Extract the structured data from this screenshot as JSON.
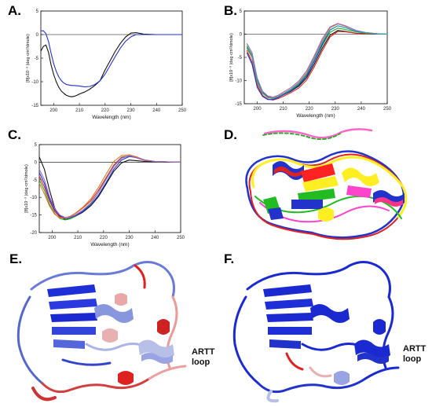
{
  "panels": {
    "a": {
      "label": "A."
    },
    "b": {
      "label": "B."
    },
    "c": {
      "label": "C."
    },
    "d": {
      "label": "D."
    },
    "e": {
      "label": "E.",
      "annotation_line1": "ARTT",
      "annotation_line2": "loop"
    },
    "f": {
      "label": "F.",
      "annotation_line1": "ARTT",
      "annotation_line2": "loop"
    }
  },
  "chart_data": [
    {
      "type": "line",
      "panel": "A.",
      "xlabel": "Wavelength (nm)",
      "ylabel": "[θ]x10⁻³ (deg·cm²/dmole)",
      "xlim": [
        195,
        250
      ],
      "ylim": [
        -15,
        5
      ],
      "xticks": [
        200,
        210,
        220,
        230,
        240,
        250
      ],
      "yticks": [
        -15,
        -10,
        -5,
        0,
        5
      ],
      "series": [
        {
          "color": "#111111",
          "x": [
            195,
            196,
            197,
            198,
            199,
            200,
            201,
            202,
            203,
            204,
            205,
            206,
            207,
            208,
            209,
            210,
            212,
            214,
            216,
            218,
            220,
            222,
            224,
            226,
            228,
            230,
            232,
            235,
            240,
            245,
            250
          ],
          "y": [
            -3.5,
            -2.5,
            -2.2,
            -3.8,
            -6.5,
            -8.5,
            -10,
            -11.2,
            -12.0,
            -12.5,
            -12.9,
            -13.1,
            -13.2,
            -13.1,
            -12.9,
            -12.6,
            -12.2,
            -11.6,
            -10.8,
            -9.8,
            -7.5,
            -5.5,
            -3.5,
            -1.8,
            -0.5,
            0.3,
            0.4,
            0.1,
            0.0,
            0.0,
            0.0
          ]
        },
        {
          "color": "#2233cc",
          "x": [
            195,
            196,
            197,
            198,
            199,
            200,
            201,
            202,
            203,
            204,
            205,
            206,
            207,
            208,
            210,
            212,
            214,
            216,
            218,
            220,
            222,
            224,
            226,
            228,
            230,
            232,
            235,
            240,
            245,
            250
          ],
          "y": [
            0.8,
            0.8,
            0.2,
            -1.5,
            -4.0,
            -6.2,
            -7.8,
            -9.0,
            -9.8,
            -10.3,
            -10.6,
            -10.7,
            -10.8,
            -10.8,
            -10.9,
            -11.1,
            -11.0,
            -10.6,
            -9.8,
            -8.4,
            -6.5,
            -4.6,
            -2.8,
            -1.4,
            -0.5,
            0.0,
            0.0,
            0.0,
            0.0,
            0.0
          ]
        }
      ]
    },
    {
      "type": "line",
      "panel": "B.",
      "xlabel": "Wavelength (nm)",
      "ylabel": "[θ]x10⁻³ (deg·cm²/dmole)",
      "xlim": [
        195,
        250
      ],
      "ylim": [
        -15,
        5
      ],
      "xticks": [
        200,
        210,
        220,
        230,
        240,
        250
      ],
      "yticks": [
        -15,
        -10,
        -5,
        0,
        5
      ],
      "series": [
        {
          "color": "#111111",
          "x": [
            196,
            198,
            200,
            202,
            204,
            206,
            208,
            210,
            213,
            216,
            219,
            222,
            225,
            228,
            231,
            234,
            238,
            242,
            246,
            250
          ],
          "y": [
            -3,
            -5,
            -10,
            -12.5,
            -13.5,
            -13.8,
            -13.6,
            -13.1,
            -12.3,
            -11.2,
            -9.4,
            -6.4,
            -3.0,
            -0.2,
            0.8,
            0.6,
            0.2,
            0.1,
            0.0,
            0.0
          ]
        },
        {
          "color": "#dd2222",
          "x": [
            196,
            198,
            200,
            202,
            204,
            206,
            208,
            210,
            213,
            216,
            219,
            222,
            225,
            228,
            231,
            234,
            238,
            242,
            246,
            250
          ],
          "y": [
            -3.5,
            -6,
            -11,
            -13.2,
            -14.0,
            -14.2,
            -13.9,
            -13.4,
            -12.6,
            -11.6,
            -9.9,
            -7.0,
            -3.6,
            -0.6,
            0.6,
            0.5,
            0.2,
            0.1,
            0.0,
            0.0
          ]
        },
        {
          "color": "#22aa22",
          "x": [
            196,
            198,
            200,
            202,
            204,
            206,
            208,
            210,
            213,
            216,
            219,
            222,
            225,
            228,
            231,
            234,
            238,
            242,
            246,
            250
          ],
          "y": [
            -2.5,
            -4.5,
            -9.8,
            -12.6,
            -13.6,
            -13.9,
            -13.5,
            -12.9,
            -12.0,
            -10.8,
            -8.9,
            -5.8,
            -2.4,
            0.4,
            1.3,
            1.0,
            0.5,
            0.2,
            0.1,
            0.0
          ]
        },
        {
          "color": "#2233cc",
          "x": [
            196,
            198,
            200,
            202,
            204,
            206,
            208,
            210,
            213,
            216,
            219,
            222,
            225,
            228,
            231,
            234,
            238,
            242,
            246,
            250
          ],
          "y": [
            -4,
            -6.5,
            -11.5,
            -13.4,
            -14.1,
            -14.1,
            -13.7,
            -13.1,
            -12.2,
            -11.0,
            -9.0,
            -5.8,
            -2.2,
            0.9,
            1.8,
            1.4,
            0.6,
            0.3,
            0.1,
            0.0
          ]
        },
        {
          "color": "#e07a2a",
          "x": [
            196,
            198,
            200,
            202,
            204,
            206,
            208,
            210,
            213,
            216,
            219,
            222,
            225,
            228,
            231,
            234,
            238,
            242,
            246,
            250
          ],
          "y": [
            -3,
            -5,
            -10.5,
            -12.8,
            -13.6,
            -13.8,
            -13.4,
            -12.8,
            -11.8,
            -10.4,
            -8.3,
            -5.0,
            -1.4,
            1.4,
            2.2,
            1.7,
            0.8,
            0.3,
            0.1,
            0.0
          ]
        },
        {
          "color": "#9966cc",
          "x": [
            196,
            198,
            200,
            202,
            204,
            206,
            208,
            210,
            213,
            216,
            219,
            222,
            225,
            228,
            231,
            234,
            238,
            242,
            246,
            250
          ],
          "y": [
            -2,
            -4,
            -9.5,
            -12.3,
            -13.3,
            -13.6,
            -13.2,
            -12.5,
            -11.5,
            -10.1,
            -7.9,
            -4.6,
            -1.0,
            1.6,
            2.3,
            1.8,
            0.8,
            0.3,
            0.1,
            0.0
          ]
        },
        {
          "color": "#22aaaa",
          "x": [
            196,
            198,
            200,
            202,
            204,
            206,
            208,
            210,
            213,
            216,
            219,
            222,
            225,
            228,
            231,
            234,
            238,
            242,
            246,
            250
          ],
          "y": [
            -2.8,
            -4.8,
            -10.2,
            -12.7,
            -13.7,
            -13.9,
            -13.5,
            -12.9,
            -11.9,
            -10.6,
            -8.6,
            -5.3,
            -1.8,
            1.0,
            1.8,
            1.4,
            0.6,
            0.3,
            0.1,
            0.0
          ]
        }
      ]
    },
    {
      "type": "line",
      "panel": "C.",
      "xlabel": "Wavelength (nm)",
      "ylabel": "[θ]x10⁻³ (deg·cm²/dmole)",
      "xlim": [
        195,
        250
      ],
      "ylim": [
        -20,
        5
      ],
      "xticks": [
        200,
        210,
        220,
        230,
        240,
        250
      ],
      "yticks": [
        -20,
        -15,
        -10,
        -5,
        0,
        5
      ],
      "series": [
        {
          "color": "#111111",
          "x": [
            195,
            197,
            199,
            201,
            203,
            205,
            207,
            209,
            212,
            215,
            218,
            221,
            224,
            227,
            230,
            233,
            236,
            240,
            245,
            250
          ],
          "y": [
            1.5,
            -2,
            -8,
            -13,
            -15.5,
            -16.2,
            -16.0,
            -15.4,
            -14.2,
            -12.4,
            -9.8,
            -6.2,
            -2.6,
            -0.2,
            0.6,
            0.4,
            0.2,
            0.1,
            0.0,
            0.0
          ]
        },
        {
          "color": "#dd2222",
          "x": [
            195,
            197,
            199,
            201,
            203,
            205,
            207,
            209,
            212,
            215,
            218,
            221,
            224,
            227,
            230,
            233,
            236,
            240,
            245,
            250
          ],
          "y": [
            -4,
            -7,
            -11,
            -14,
            -15.6,
            -15.8,
            -15.4,
            -14.6,
            -13.0,
            -11.0,
            -8.0,
            -4.4,
            -0.8,
            1.4,
            1.8,
            1.2,
            0.5,
            0.2,
            0.1,
            0.0
          ]
        },
        {
          "color": "#22aa22",
          "x": [
            195,
            197,
            199,
            201,
            203,
            205,
            207,
            209,
            212,
            215,
            218,
            221,
            224,
            227,
            230,
            233,
            236,
            240,
            245,
            250
          ],
          "y": [
            -5,
            -8,
            -12,
            -14.6,
            -16.0,
            -16.4,
            -16.1,
            -15.4,
            -13.9,
            -11.8,
            -8.6,
            -4.8,
            -1.2,
            1.2,
            1.9,
            1.4,
            0.6,
            0.2,
            0.1,
            0.0
          ]
        },
        {
          "color": "#2233cc",
          "x": [
            195,
            197,
            199,
            201,
            203,
            205,
            207,
            209,
            212,
            215,
            218,
            221,
            224,
            227,
            230,
            233,
            236,
            240,
            245,
            250
          ],
          "y": [
            -3,
            -6,
            -10.5,
            -13.6,
            -15.2,
            -15.8,
            -15.7,
            -15.2,
            -14.0,
            -12.2,
            -9.4,
            -5.8,
            -2.0,
            0.6,
            1.6,
            1.3,
            0.6,
            0.2,
            0.1,
            0.0
          ]
        },
        {
          "color": "#e07a2a",
          "x": [
            195,
            197,
            199,
            201,
            203,
            205,
            207,
            209,
            212,
            215,
            218,
            221,
            224,
            227,
            230,
            233,
            236,
            240,
            245,
            250
          ],
          "y": [
            -6,
            -9,
            -12.5,
            -14.8,
            -15.8,
            -15.9,
            -15.4,
            -14.5,
            -12.8,
            -10.5,
            -7.2,
            -3.4,
            0.2,
            1.9,
            2.1,
            1.5,
            0.6,
            0.2,
            0.1,
            0.0
          ]
        },
        {
          "color": "#9966cc",
          "x": [
            195,
            197,
            199,
            201,
            203,
            205,
            207,
            209,
            212,
            215,
            218,
            221,
            224,
            227,
            230,
            233,
            236,
            240,
            245,
            250
          ],
          "y": [
            -2,
            -5,
            -9.8,
            -13.2,
            -15.0,
            -15.7,
            -15.6,
            -15.0,
            -13.6,
            -11.6,
            -8.6,
            -4.9,
            -1.2,
            1.1,
            1.8,
            1.3,
            0.6,
            0.2,
            0.1,
            0.0
          ]
        }
      ]
    }
  ]
}
